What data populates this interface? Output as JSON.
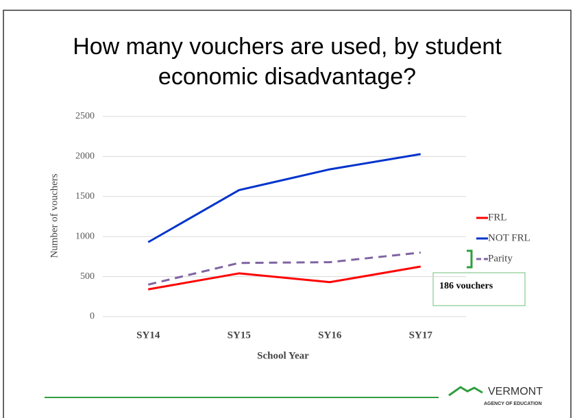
{
  "chart_data": {
    "type": "line",
    "title": [
      "How many vouchers are used, by student",
      "economic disadvantage?"
    ],
    "categories": [
      "SY14",
      "SY15",
      "SY16",
      "SY17"
    ],
    "series": [
      {
        "name": "FRL",
        "color": "#ff0000",
        "dash": false,
        "values": [
          340,
          540,
          430,
          625
        ]
      },
      {
        "name": "NOT FRL",
        "color": "#0033cc",
        "dash": false,
        "values": [
          930,
          1580,
          1840,
          2030
        ]
      },
      {
        "name": "Parity",
        "color": "#8064a2",
        "dash": true,
        "values": [
          400,
          670,
          680,
          800
        ]
      }
    ],
    "ylim": [
      0,
      2500
    ],
    "yticks": [
      0,
      500,
      1000,
      1500,
      2000,
      2500
    ],
    "grid": true,
    "xlabel": "School Year",
    "ylabel": "Number of vouchers",
    "legend": "right",
    "annotation": "186 vouchers",
    "logo": {
      "name": "VERMONT",
      "subtitle": "AGENCY OF EDUCATION"
    }
  }
}
